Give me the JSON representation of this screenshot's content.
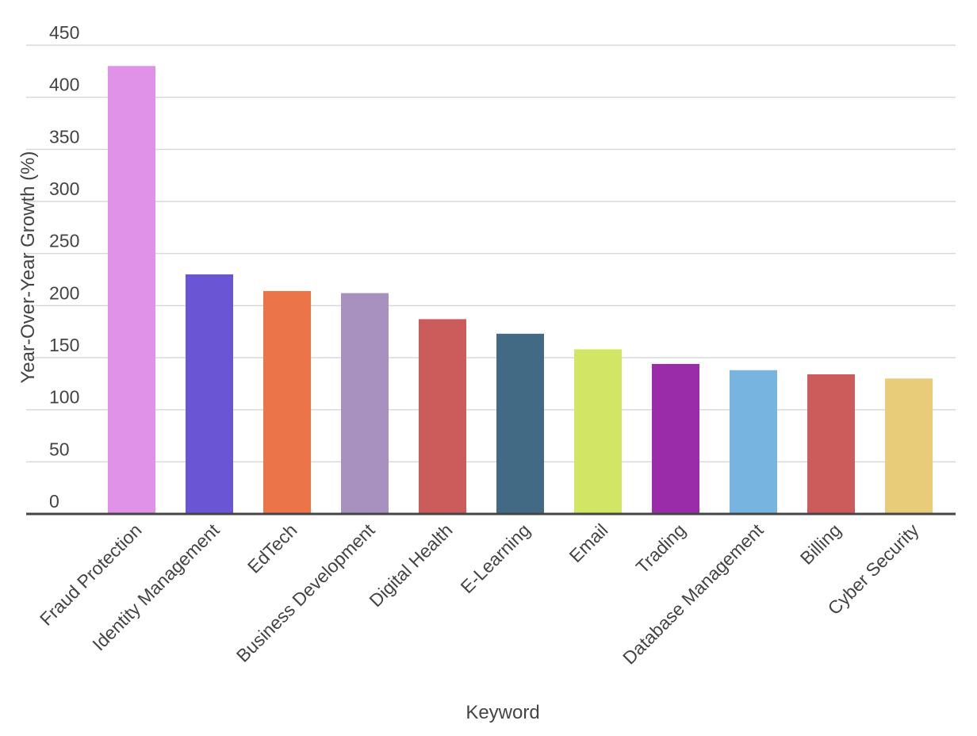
{
  "chart_data": {
    "type": "bar",
    "title": "",
    "xlabel": "Keyword",
    "ylabel": "Year-Over-Year Growth (%)",
    "ylim": [
      0,
      450
    ],
    "yticks": [
      0,
      50,
      100,
      150,
      200,
      250,
      300,
      350,
      400,
      450
    ],
    "grid": true,
    "legend": "none",
    "categories": [
      "Fraud Protection",
      "Identity Management",
      "EdTech",
      "Business Development",
      "Digital Health",
      "E-Learning",
      "Email",
      "Trading",
      "Database Management",
      "Billing",
      "Cyber Security"
    ],
    "values": [
      430,
      230,
      214,
      212,
      187,
      173,
      158,
      144,
      138,
      134,
      130
    ],
    "colors": [
      "#e091e8",
      "#6a56d4",
      "#ec7449",
      "#a891bf",
      "#cc5c5c",
      "#426a85",
      "#d2e564",
      "#9a2ca9",
      "#77b4e0",
      "#cc5c5c",
      "#e9cc7a"
    ]
  }
}
